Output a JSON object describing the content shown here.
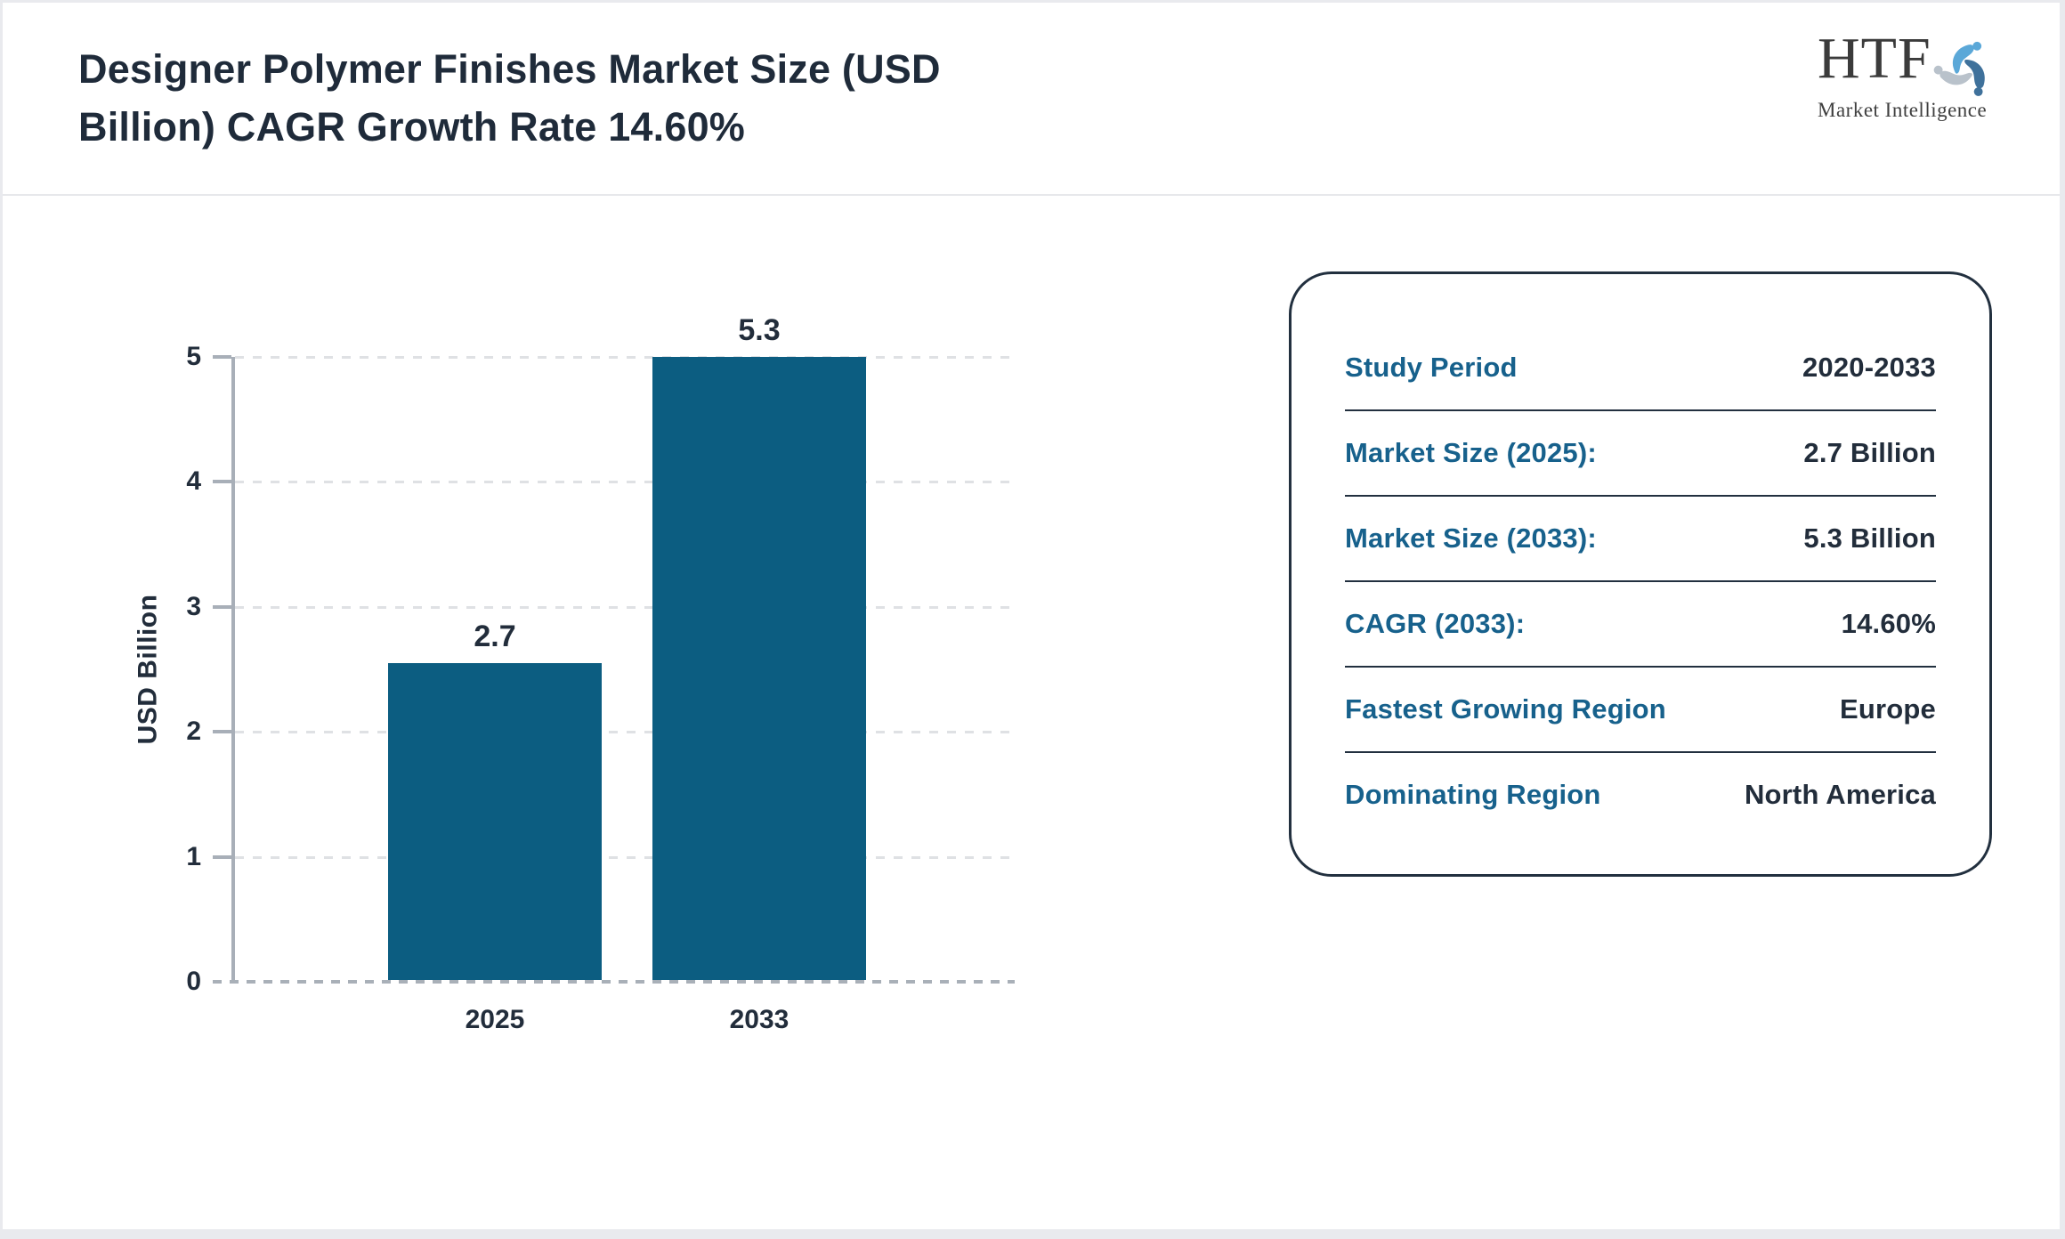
{
  "header": {
    "title_lines": [
      "Designer Polymer Finishes Market Size (USD",
      "Billion) CAGR Growth Rate 14.60%"
    ],
    "logo": {
      "text": "HTF",
      "subtext": "Market Intelligence",
      "icon": "three-figures-swirl-icon"
    }
  },
  "chart_data": {
    "type": "bar",
    "title": "Designer Polymer Finishes Market Size (USD Billion) CAGR Growth Rate 14.60%",
    "categories": [
      "2025",
      "2033"
    ],
    "values": [
      2.7,
      5.3
    ],
    "value_labels": [
      "2.7",
      "5.3"
    ],
    "xlabel": "",
    "ylabel": "USD Billion",
    "ylim": [
      0,
      5
    ],
    "yticks": [
      0,
      1,
      2,
      3,
      4,
      5
    ],
    "grid": "horizontal dashed",
    "legend": false,
    "bar_color": "#0c5d81",
    "bars_scaled_to_max_value": true,
    "top_bar_clipped_at_axis_max": true
  },
  "info_card": {
    "rows": [
      {
        "label": "Study Period",
        "value": "2020-2033"
      },
      {
        "label": "Market Size (2025):",
        "value": "2.7 Billion"
      },
      {
        "label": "Market Size (2033):",
        "value": "5.3 Billion"
      },
      {
        "label": "CAGR (2033):",
        "value": "14.60%"
      },
      {
        "label": "Fastest Growing Region",
        "value": "Europe"
      },
      {
        "label": "Dominating Region",
        "value": "North America"
      }
    ]
  },
  "colors": {
    "bar": "#0c5d81",
    "label_teal": "#17618c",
    "text_dark": "#222d3b",
    "axis_gray": "#a8afb8",
    "gridline_gray": "#dfe1e4",
    "card_border": "#22303f",
    "header_divider": "#e7e8eb",
    "page_frame": "#e9eaee",
    "logo_light_blue": "#5ba8d8",
    "logo_steel_blue": "#3f719b",
    "logo_gray": "#b9c2cb"
  }
}
